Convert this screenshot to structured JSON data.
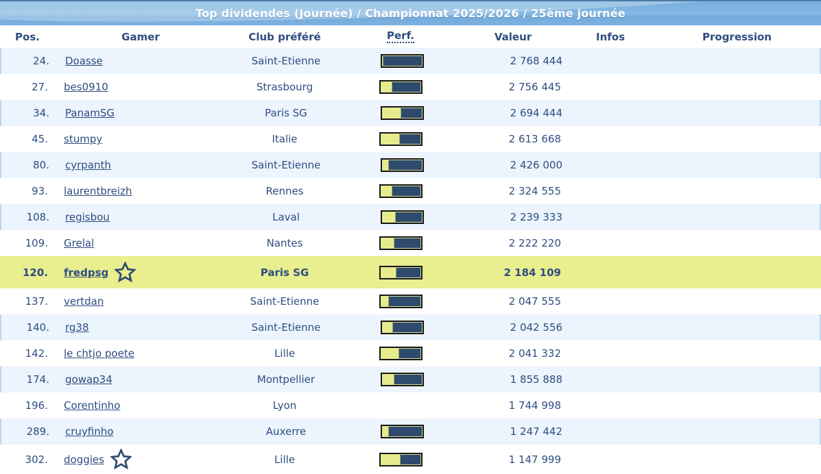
{
  "title": "Top dividendes (Journée) / Championnat 2025/2026 / 25ème journée",
  "columns": [
    {
      "key": "pos",
      "label": "Pos."
    },
    {
      "key": "gamer",
      "label": "Gamer"
    },
    {
      "key": "club",
      "label": "Club préféré"
    },
    {
      "key": "perf",
      "label": "Perf."
    },
    {
      "key": "valeur",
      "label": "Valeur"
    },
    {
      "key": "infos",
      "label": "Infos"
    },
    {
      "key": "progression",
      "label": "Progression"
    }
  ],
  "rows": [
    {
      "pos": "24.",
      "gamer": "Doasse",
      "club": "Saint-Etienne",
      "perf_percent": 5,
      "valeur": "2 768 444",
      "infos": "",
      "progression": "",
      "starred": false,
      "highlighted": false
    },
    {
      "pos": "27.",
      "gamer": "bes0910",
      "club": "Strasbourg",
      "perf_percent": 30,
      "valeur": "2 756 445",
      "infos": "",
      "progression": "",
      "starred": false,
      "highlighted": false
    },
    {
      "pos": "34.",
      "gamer": "PanamSG",
      "club": "Paris SG",
      "perf_percent": 48,
      "valeur": "2 694 444",
      "infos": "",
      "progression": "",
      "starred": false,
      "highlighted": false
    },
    {
      "pos": "45.",
      "gamer": "stumpy",
      "club": "Italie",
      "perf_percent": 48,
      "valeur": "2 613 668",
      "infos": "",
      "progression": "",
      "starred": false,
      "highlighted": false
    },
    {
      "pos": "80.",
      "gamer": "cyrpanth",
      "club": "Saint-Etienne",
      "perf_percent": 17,
      "valeur": "2 426 000",
      "infos": "",
      "progression": "",
      "starred": false,
      "highlighted": false
    },
    {
      "pos": "93.",
      "gamer": "laurentbreizh",
      "club": "Rennes",
      "perf_percent": 30,
      "valeur": "2 324 555",
      "infos": "",
      "progression": "",
      "starred": false,
      "highlighted": false
    },
    {
      "pos": "108.",
      "gamer": "regisbou",
      "club": "Laval",
      "perf_percent": 35,
      "valeur": "2 239 333",
      "infos": "",
      "progression": "",
      "starred": false,
      "highlighted": false
    },
    {
      "pos": "109.",
      "gamer": "Grelal",
      "club": "Nantes",
      "perf_percent": 35,
      "valeur": "2 222 220",
      "infos": "",
      "progression": "",
      "starred": false,
      "highlighted": false
    },
    {
      "pos": "120.",
      "gamer": "fredpsg",
      "club": "Paris SG",
      "perf_percent": 40,
      "valeur": "2 184 109",
      "infos": "",
      "progression": "",
      "starred": true,
      "highlighted": true
    },
    {
      "pos": "137.",
      "gamer": "vertdan",
      "club": "Saint-Etienne",
      "perf_percent": 22,
      "valeur": "2 047 555",
      "infos": "",
      "progression": "",
      "starred": false,
      "highlighted": false
    },
    {
      "pos": "140.",
      "gamer": "rg38",
      "club": "Saint-Etienne",
      "perf_percent": 28,
      "valeur": "2 042 556",
      "infos": "",
      "progression": "",
      "starred": false,
      "highlighted": false
    },
    {
      "pos": "142.",
      "gamer": "le chtjo poete",
      "club": "Lille",
      "perf_percent": 47,
      "valeur": "2 041 332",
      "infos": "",
      "progression": "",
      "starred": false,
      "highlighted": false
    },
    {
      "pos": "174.",
      "gamer": "gowap34",
      "club": "Montpellier",
      "perf_percent": 32,
      "valeur": "1 855 888",
      "infos": "",
      "progression": "",
      "starred": false,
      "highlighted": false
    },
    {
      "pos": "196.",
      "gamer": "Corentinho",
      "club": "Lyon",
      "perf_percent": null,
      "valeur": "1 744 998",
      "infos": "",
      "progression": "",
      "starred": false,
      "highlighted": false
    },
    {
      "pos": "289.",
      "gamer": "cruyfinho",
      "club": "Auxerre",
      "perf_percent": 18,
      "valeur": "1 247 442",
      "infos": "",
      "progression": "",
      "starred": false,
      "highlighted": false
    },
    {
      "pos": "302.",
      "gamer": "doggies",
      "club": "Lille",
      "perf_percent": 50,
      "valeur": "1 147 999",
      "infos": "",
      "progression": "",
      "starred": true,
      "highlighted": false
    }
  ],
  "colors": {
    "text_navy": "#2e4d80",
    "banner_blue": "#7aafdd",
    "row_shade": "#ecf4fd",
    "row_shade_border": "#bed4e9",
    "highlight_row": "#e9ee8e",
    "perf_fill": "#e6eb8e",
    "perf_track": "#2e4a6c",
    "perf_border": "#161616"
  },
  "icons": {
    "star": "favorite-star-icon"
  }
}
